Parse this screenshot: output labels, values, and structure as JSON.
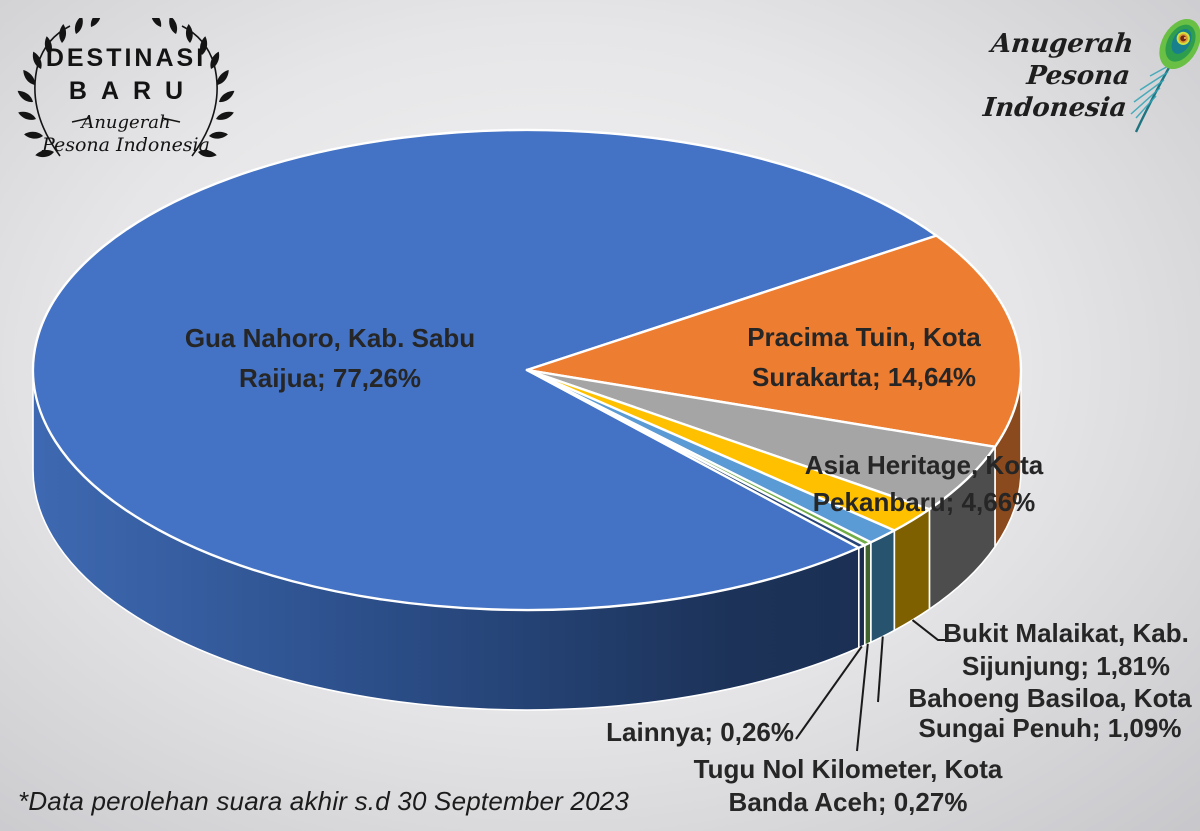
{
  "branding": {
    "badge": {
      "title1": "DESTINASI",
      "title2": "BARU",
      "script1": "Anugerah",
      "script2": "Pesona Indonesia"
    },
    "logo": {
      "script1": "Anugerah",
      "script2": "Pesona Indonesia"
    }
  },
  "footnote": "*Data perolehan suara akhir s.d 30 September 2023",
  "chart_data": {
    "type": "pie",
    "projection": "3d",
    "start_angle_clockwise_from_top_deg": 137.8,
    "legend": "none",
    "title": "",
    "label_format": "name; percent with comma decimal",
    "slices": [
      {
        "name": "Gua Nahoro, Kab. Sabu Raijua",
        "value_pct": 77.26,
        "color": "#4472C4",
        "side_color": "#24426F",
        "label_line1": "Gua Nahoro, Kab. Sabu",
        "label_line2": "Raijua; 77,26%"
      },
      {
        "name": "Pracima Tuin, Kota Surakarta",
        "value_pct": 14.64,
        "color": "#ED7D31",
        "side_color": "#8B4A1E",
        "label_line1": "Pracima Tuin, Kota",
        "label_line2": "Surakarta; 14,64%"
      },
      {
        "name": "Asia Heritage, Kota Pekanbaru",
        "value_pct": 4.66,
        "color": "#A5A5A5",
        "side_color": "#4D4D4D",
        "label_line1": "Asia Heritage, Kota",
        "label_line2": "Pekanbaru; 4,66%"
      },
      {
        "name": "Bukit Malaikat, Kab. Sijunjung",
        "value_pct": 1.81,
        "color": "#FFC000",
        "side_color": "#7F6000",
        "label_line1": "Bukit Malaikat, Kab.",
        "label_line2": "Sijunjung; 1,81%"
      },
      {
        "name": "Bahoeng Basiloa, Kota Sungai Penuh",
        "value_pct": 1.09,
        "color": "#5B9BD5",
        "side_color": "#27536F",
        "label_line1": "Bahoeng Basiloa, Kota",
        "label_line2": "Sungai Penuh; 1,09%"
      },
      {
        "name": "Tugu Nol Kilometer, Kota Banda Aceh",
        "value_pct": 0.27,
        "color": "#70AD47",
        "side_color": "#40642C",
        "label_line1": "Tugu Nol Kilometer, Kota",
        "label_line2": "Banda Aceh; 0,27%"
      },
      {
        "name": "Lainnya",
        "value_pct": 0.26,
        "color": "#264478",
        "side_color": "#1A2B4C",
        "label_line1": "Lainnya; 0,26%",
        "label_line2": ""
      }
    ]
  }
}
